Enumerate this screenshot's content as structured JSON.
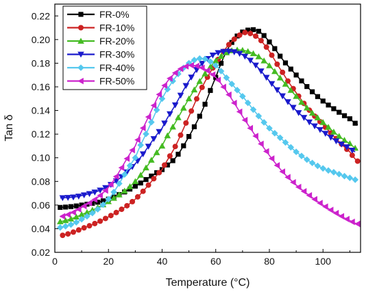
{
  "chart_data": {
    "type": "line",
    "xlabel": "Temperature (°C)",
    "ylabel": "Tan δ",
    "xlim": [
      0,
      114
    ],
    "ylim": [
      0.02,
      0.23
    ],
    "xticks": [
      0,
      20,
      40,
      60,
      80,
      100
    ],
    "yticks": [
      0.02,
      0.04,
      0.06,
      0.08,
      0.1,
      0.12,
      0.14,
      0.16,
      0.18,
      0.2,
      0.22
    ],
    "x_tick_labels": [
      "0",
      "20",
      "40",
      "60",
      "80",
      "100"
    ],
    "y_tick_labels": [
      "0.02",
      "0.04",
      "0.06",
      "0.08",
      "0.10",
      "0.12",
      "0.14",
      "0.16",
      "0.18",
      "0.20",
      "0.22"
    ],
    "grid": false,
    "legend_position": "top-left",
    "series": [
      {
        "name": "FR-0%",
        "color": "#000000",
        "marker": "square",
        "points": [
          [
            2,
            0.058
          ],
          [
            10,
            0.06
          ],
          [
            20,
            0.065
          ],
          [
            30,
            0.076
          ],
          [
            40,
            0.09
          ],
          [
            45,
            0.1
          ],
          [
            50,
            0.118
          ],
          [
            55,
            0.14
          ],
          [
            60,
            0.168
          ],
          [
            64,
            0.19
          ],
          [
            68,
            0.203
          ],
          [
            72,
            0.208
          ],
          [
            76,
            0.207
          ],
          [
            80,
            0.198
          ],
          [
            85,
            0.183
          ],
          [
            90,
            0.17
          ],
          [
            95,
            0.158
          ],
          [
            100,
            0.148
          ],
          [
            105,
            0.14
          ],
          [
            110,
            0.133
          ],
          [
            113,
            0.128
          ]
        ]
      },
      {
        "name": "FR-10%",
        "color": "#cc2222",
        "marker": "circle",
        "points": [
          [
            2,
            0.034
          ],
          [
            10,
            0.04
          ],
          [
            20,
            0.05
          ],
          [
            30,
            0.065
          ],
          [
            40,
            0.09
          ],
          [
            45,
            0.11
          ],
          [
            50,
            0.135
          ],
          [
            55,
            0.16
          ],
          [
            60,
            0.18
          ],
          [
            65,
            0.196
          ],
          [
            70,
            0.205
          ],
          [
            73,
            0.205
          ],
          [
            78,
            0.196
          ],
          [
            85,
            0.172
          ],
          [
            90,
            0.155
          ],
          [
            95,
            0.14
          ],
          [
            100,
            0.128
          ],
          [
            105,
            0.116
          ],
          [
            110,
            0.105
          ],
          [
            113,
            0.097
          ]
        ]
      },
      {
        "name": "FR-20%",
        "color": "#44bb22",
        "marker": "triangle-up",
        "points": [
          [
            2,
            0.046
          ],
          [
            10,
            0.052
          ],
          [
            20,
            0.063
          ],
          [
            30,
            0.08
          ],
          [
            40,
            0.11
          ],
          [
            45,
            0.13
          ],
          [
            50,
            0.15
          ],
          [
            55,
            0.168
          ],
          [
            60,
            0.182
          ],
          [
            65,
            0.19
          ],
          [
            70,
            0.191
          ],
          [
            75,
            0.187
          ],
          [
            80,
            0.178
          ],
          [
            85,
            0.165
          ],
          [
            90,
            0.152
          ],
          [
            95,
            0.14
          ],
          [
            100,
            0.13
          ],
          [
            105,
            0.12
          ],
          [
            110,
            0.112
          ],
          [
            113,
            0.107
          ]
        ]
      },
      {
        "name": "FR-30%",
        "color": "#1a1acc",
        "marker": "triangle-down",
        "points": [
          [
            2,
            0.066
          ],
          [
            10,
            0.068
          ],
          [
            20,
            0.076
          ],
          [
            30,
            0.095
          ],
          [
            40,
            0.125
          ],
          [
            45,
            0.145
          ],
          [
            50,
            0.165
          ],
          [
            55,
            0.18
          ],
          [
            60,
            0.188
          ],
          [
            65,
            0.19
          ],
          [
            70,
            0.187
          ],
          [
            75,
            0.178
          ],
          [
            80,
            0.165
          ],
          [
            85,
            0.152
          ],
          [
            90,
            0.14
          ],
          [
            95,
            0.13
          ],
          [
            100,
            0.122
          ],
          [
            105,
            0.114
          ],
          [
            110,
            0.108
          ],
          [
            112,
            0.105
          ]
        ]
      },
      {
        "name": "FR-40%",
        "color": "#55c8ee",
        "marker": "diamond",
        "points": [
          [
            2,
            0.041
          ],
          [
            10,
            0.048
          ],
          [
            20,
            0.065
          ],
          [
            30,
            0.1
          ],
          [
            35,
            0.125
          ],
          [
            40,
            0.15
          ],
          [
            45,
            0.168
          ],
          [
            50,
            0.18
          ],
          [
            55,
            0.184
          ],
          [
            60,
            0.178
          ],
          [
            65,
            0.165
          ],
          [
            70,
            0.152
          ],
          [
            75,
            0.138
          ],
          [
            80,
            0.125
          ],
          [
            85,
            0.115
          ],
          [
            90,
            0.105
          ],
          [
            95,
            0.097
          ],
          [
            100,
            0.091
          ],
          [
            105,
            0.087
          ],
          [
            110,
            0.083
          ],
          [
            113,
            0.081
          ]
        ]
      },
      {
        "name": "FR-50%",
        "color": "#cc22cc",
        "marker": "triangle-left",
        "points": [
          [
            2,
            0.05
          ],
          [
            10,
            0.058
          ],
          [
            20,
            0.075
          ],
          [
            30,
            0.11
          ],
          [
            35,
            0.135
          ],
          [
            40,
            0.158
          ],
          [
            45,
            0.172
          ],
          [
            50,
            0.178
          ],
          [
            55,
            0.176
          ],
          [
            60,
            0.168
          ],
          [
            65,
            0.153
          ],
          [
            70,
            0.135
          ],
          [
            75,
            0.118
          ],
          [
            80,
            0.102
          ],
          [
            85,
            0.088
          ],
          [
            90,
            0.077
          ],
          [
            95,
            0.068
          ],
          [
            100,
            0.06
          ],
          [
            105,
            0.053
          ],
          [
            110,
            0.047
          ],
          [
            113,
            0.044
          ]
        ]
      }
    ]
  }
}
